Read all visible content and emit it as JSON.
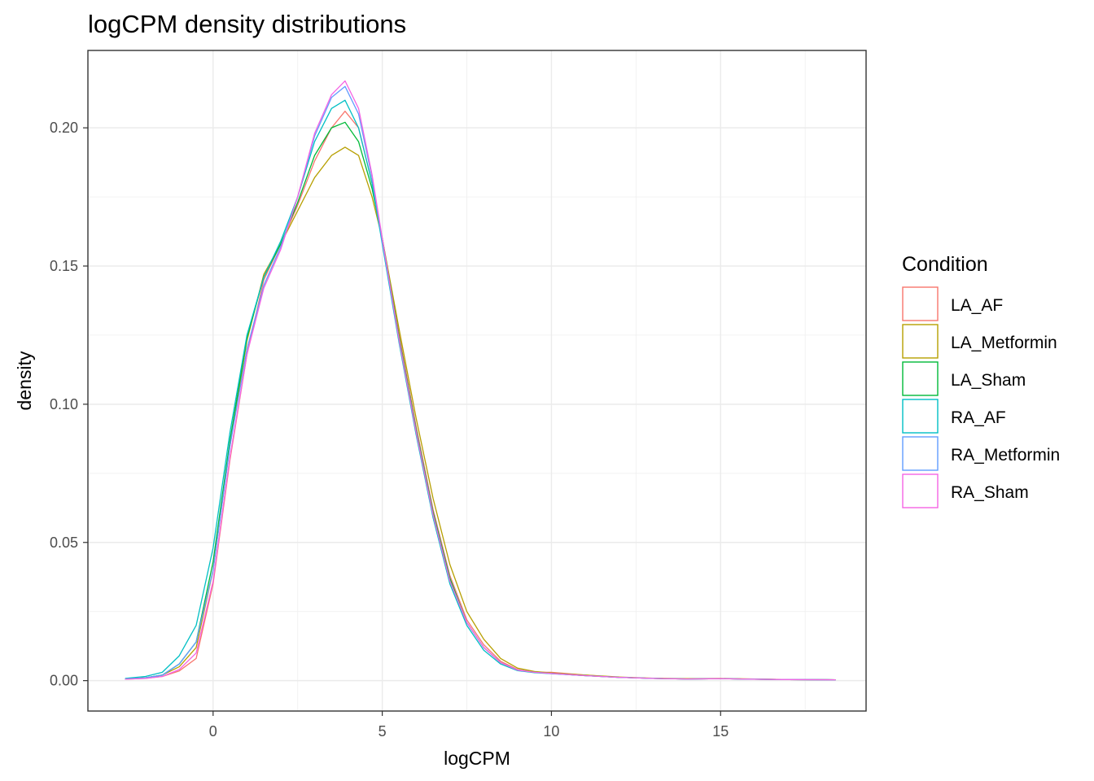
{
  "chart_data": {
    "type": "line",
    "subtype": "density",
    "title": "logCPM density distributions",
    "xlabel": "logCPM",
    "ylabel": "density",
    "xlim": [
      -3.7,
      19.3
    ],
    "ylim": [
      -0.011,
      0.228
    ],
    "xticks": [
      0,
      5,
      10,
      15
    ],
    "xtick_labels": [
      "0",
      "5",
      "10",
      "15"
    ],
    "yticks": [
      0.0,
      0.05,
      0.1,
      0.15,
      0.2
    ],
    "ytick_labels": [
      "0.00",
      "0.05",
      "0.10",
      "0.15",
      "0.20"
    ],
    "grid": true,
    "legend": {
      "title": "Condition",
      "position": "right",
      "entries": [
        "LA_AF",
        "LA_Metformin",
        "LA_Sham",
        "RA_AF",
        "RA_Metformin",
        "RA_Sham"
      ]
    },
    "colors": {
      "LA_AF": "#F8766D",
      "LA_Metformin": "#B79F00",
      "LA_Sham": "#00BA38",
      "RA_AF": "#00BFC4",
      "RA_Metformin": "#619CFF",
      "RA_Sham": "#F564E3"
    },
    "series": [
      {
        "name": "LA_AF",
        "x": [
          -2.6,
          -2,
          -1.5,
          -1,
          -0.5,
          0,
          0.5,
          1,
          1.5,
          2,
          2.5,
          3,
          3.5,
          3.9,
          4.3,
          4.7,
          5,
          5.5,
          6,
          6.5,
          7,
          7.5,
          8,
          8.5,
          9,
          9.5,
          10,
          11,
          12,
          13,
          14,
          15,
          16,
          17,
          18.4
        ],
        "y": [
          0.0005,
          0.0008,
          0.0015,
          0.0035,
          0.008,
          0.035,
          0.08,
          0.118,
          0.145,
          0.158,
          0.172,
          0.188,
          0.2,
          0.206,
          0.2,
          0.18,
          0.16,
          0.125,
          0.092,
          0.062,
          0.038,
          0.022,
          0.013,
          0.007,
          0.004,
          0.003,
          0.003,
          0.002,
          0.0012,
          0.0008,
          0.0006,
          0.0007,
          0.0005,
          0.0004,
          0.0003
        ]
      },
      {
        "name": "LA_Metformin",
        "x": [
          -2.6,
          -2,
          -1.5,
          -1,
          -0.5,
          0,
          0.5,
          1,
          1.5,
          2,
          2.5,
          3,
          3.5,
          3.9,
          4.3,
          4.7,
          5,
          5.5,
          6,
          6.5,
          7,
          7.5,
          8,
          8.5,
          9,
          9.5,
          10,
          11,
          12,
          13,
          14,
          15,
          16,
          17,
          18.4
        ],
        "y": [
          0.0006,
          0.001,
          0.002,
          0.005,
          0.012,
          0.04,
          0.085,
          0.123,
          0.147,
          0.158,
          0.17,
          0.182,
          0.19,
          0.193,
          0.19,
          0.175,
          0.16,
          0.127,
          0.095,
          0.066,
          0.042,
          0.025,
          0.015,
          0.008,
          0.0045,
          0.0033,
          0.0028,
          0.002,
          0.0013,
          0.0009,
          0.0007,
          0.0008,
          0.0006,
          0.0004,
          0.0003
        ]
      },
      {
        "name": "LA_Sham",
        "x": [
          -2.6,
          -2,
          -1.5,
          -1,
          -0.5,
          0,
          0.5,
          1,
          1.5,
          2,
          2.5,
          3,
          3.5,
          3.9,
          4.3,
          4.7,
          5,
          5.5,
          6,
          6.5,
          7,
          7.5,
          8,
          8.5,
          9,
          9.5,
          10,
          11,
          12,
          13,
          14,
          15,
          16,
          17,
          18.4
        ],
        "y": [
          0.0006,
          0.001,
          0.002,
          0.006,
          0.014,
          0.043,
          0.087,
          0.124,
          0.146,
          0.158,
          0.173,
          0.19,
          0.2,
          0.202,
          0.195,
          0.178,
          0.16,
          0.124,
          0.091,
          0.061,
          0.037,
          0.021,
          0.012,
          0.0065,
          0.0038,
          0.003,
          0.0026,
          0.0018,
          0.0012,
          0.0008,
          0.0006,
          0.0007,
          0.0005,
          0.0004,
          0.0003
        ]
      },
      {
        "name": "RA_AF",
        "x": [
          -2.6,
          -2,
          -1.5,
          -1,
          -0.5,
          0,
          0.5,
          1,
          1.5,
          2,
          2.5,
          3,
          3.5,
          3.9,
          4.3,
          4.7,
          5,
          5.5,
          6,
          6.5,
          7,
          7.5,
          8,
          8.5,
          9,
          9.5,
          10,
          11,
          12,
          13,
          14,
          15,
          16,
          17,
          18.4
        ],
        "y": [
          0.0008,
          0.0015,
          0.003,
          0.009,
          0.02,
          0.048,
          0.09,
          0.125,
          0.146,
          0.159,
          0.175,
          0.195,
          0.207,
          0.21,
          0.2,
          0.18,
          0.158,
          0.122,
          0.089,
          0.059,
          0.035,
          0.02,
          0.011,
          0.006,
          0.0036,
          0.0029,
          0.0025,
          0.0018,
          0.0012,
          0.0008,
          0.0006,
          0.0007,
          0.0005,
          0.0004,
          0.0003
        ]
      },
      {
        "name": "RA_Metformin",
        "x": [
          -2.6,
          -2,
          -1.5,
          -1,
          -0.5,
          0,
          0.5,
          1,
          1.5,
          2,
          2.5,
          3,
          3.5,
          3.9,
          4.3,
          4.7,
          5,
          5.5,
          6,
          6.5,
          7,
          7.5,
          8,
          8.5,
          9,
          9.5,
          10,
          11,
          12,
          13,
          14,
          15,
          16,
          17,
          18.4
        ],
        "y": [
          0.0006,
          0.001,
          0.002,
          0.006,
          0.014,
          0.04,
          0.085,
          0.12,
          0.143,
          0.157,
          0.175,
          0.197,
          0.211,
          0.215,
          0.205,
          0.182,
          0.159,
          0.123,
          0.09,
          0.06,
          0.036,
          0.021,
          0.012,
          0.0065,
          0.0038,
          0.003,
          0.0026,
          0.0018,
          0.0012,
          0.0008,
          0.0006,
          0.0007,
          0.0005,
          0.0004,
          0.0003
        ]
      },
      {
        "name": "RA_Sham",
        "x": [
          -2.6,
          -2,
          -1.5,
          -1,
          -0.5,
          0,
          0.5,
          1,
          1.5,
          2,
          2.5,
          3,
          3.5,
          3.9,
          4.3,
          4.7,
          5,
          5.5,
          6,
          6.5,
          7,
          7.5,
          8,
          8.5,
          9,
          9.5,
          10,
          11,
          12,
          13,
          14,
          15,
          16,
          17,
          18.4
        ],
        "y": [
          0.0005,
          0.0008,
          0.0015,
          0.004,
          0.01,
          0.036,
          0.081,
          0.118,
          0.142,
          0.156,
          0.175,
          0.198,
          0.212,
          0.217,
          0.207,
          0.183,
          0.16,
          0.123,
          0.09,
          0.06,
          0.036,
          0.021,
          0.012,
          0.0065,
          0.0038,
          0.003,
          0.0026,
          0.0018,
          0.0012,
          0.0008,
          0.0006,
          0.0007,
          0.0005,
          0.0004,
          0.0003
        ]
      }
    ]
  }
}
